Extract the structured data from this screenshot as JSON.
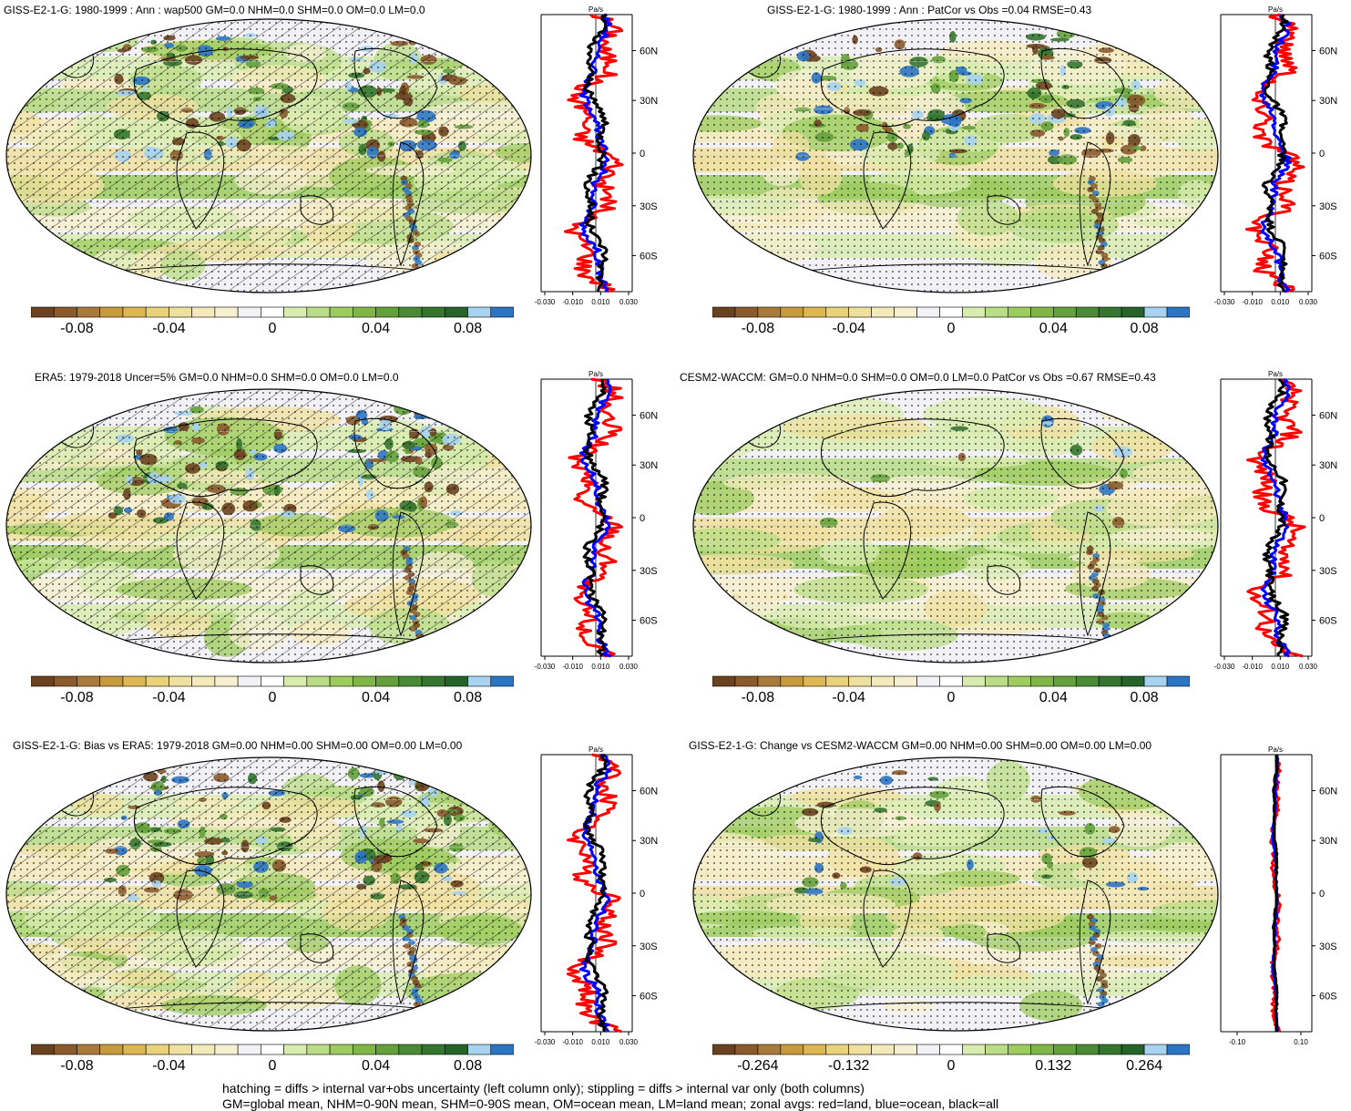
{
  "colorbar_colors": [
    "#6b4220",
    "#8a5a2d",
    "#a87a3c",
    "#c79a3d",
    "#dcb752",
    "#ead27a",
    "#f0e0a0",
    "#f4e9bb",
    "#f6efd0",
    "#f2f2f6",
    "#ffffff",
    "#d9ecb0",
    "#b9dc86",
    "#9ccb5e",
    "#80b646",
    "#64a03c",
    "#4a8a36",
    "#357530",
    "#256328",
    "#a7d3f0",
    "#2c74c4"
  ],
  "zonal_colors": {
    "land": "#ff0000",
    "ocean": "#0000ff",
    "all": "#000000"
  },
  "lat_ticks": [
    "60N",
    "30N",
    "0",
    "30S",
    "60S"
  ],
  "zonal_unit": "Pa/s",
  "panels": [
    {
      "title": "GISS-E2-1-G: 1980-1999 : Ann : wap500 GM=0.0 NHM=0.0 SHM=0.0 OM=0.0 LM=0.0",
      "cb_labels": [
        "-0.08",
        "-0.04",
        "0",
        "0.04",
        "0.08"
      ],
      "zonal_ticks": [
        "-0.030",
        "-0.010",
        "0.010",
        "0.030"
      ],
      "hatch": true
    },
    {
      "title": "GISS-E2-1-G: 1980-1999 : Ann : PatCor vs Obs =0.04 RMSE=0.43",
      "cb_labels": [
        "-0.08",
        "-0.04",
        "0",
        "0.04",
        "0.08"
      ],
      "zonal_ticks": [
        "-0.030",
        "-0.010",
        "0.010",
        "0.030"
      ],
      "hatch": false
    },
    {
      "title": "ERA5: 1979-2018 Uncer=5% GM=0.0 NHM=0.0 SHM=0.0 OM=0.0 LM=0.0",
      "cb_labels": [
        "-0.08",
        "-0.04",
        "0",
        "0.04",
        "0.08"
      ],
      "zonal_ticks": [
        "-0.030",
        "-0.010",
        "0.010",
        "0.030"
      ],
      "hatch": true
    },
    {
      "title": "CESM2-WACCM: GM=0.0 NHM=0.0 SHM=0.0 OM=0.0 LM=0.0 PatCor vs Obs =0.67 RMSE=0.43",
      "cb_labels": [
        "-0.08",
        "-0.04",
        "0",
        "0.04",
        "0.08"
      ],
      "zonal_ticks": [
        "-0.030",
        "-0.010",
        "0.010",
        "0.030"
      ],
      "hatch": false
    },
    {
      "title": "GISS-E2-1-G: Bias vs ERA5: 1979-2018 GM=0.00 NHM=0.00 SHM=0.00 OM=0.00 LM=0.00",
      "cb_labels": [
        "-0.08",
        "-0.04",
        "0",
        "0.04",
        "0.08"
      ],
      "zonal_ticks": [
        "-0.030",
        "-0.010",
        "0.010",
        "0.030"
      ],
      "hatch": true
    },
    {
      "title": "GISS-E2-1-G: Change vs CESM2-WACCM GM=0.00 NHM=0.00 SHM=0.00 OM=0.00 LM=0.00",
      "cb_labels": [
        "-0.264",
        "-0.132",
        "0",
        "0.132",
        "0.264"
      ],
      "zonal_ticks": [
        "-0.10",
        "0.10"
      ],
      "hatch": false
    }
  ],
  "footer": {
    "line1": "hatching = diffs > internal var+obs uncertainty (left column only); stippling = diffs > internal var only (both columns)",
    "line2": "GM=global mean, NHM=0-90N mean, SHM=0-90S mean, OM=ocean mean, LM=land mean; zonal avgs: red=land, blue=ocean, black=all"
  }
}
